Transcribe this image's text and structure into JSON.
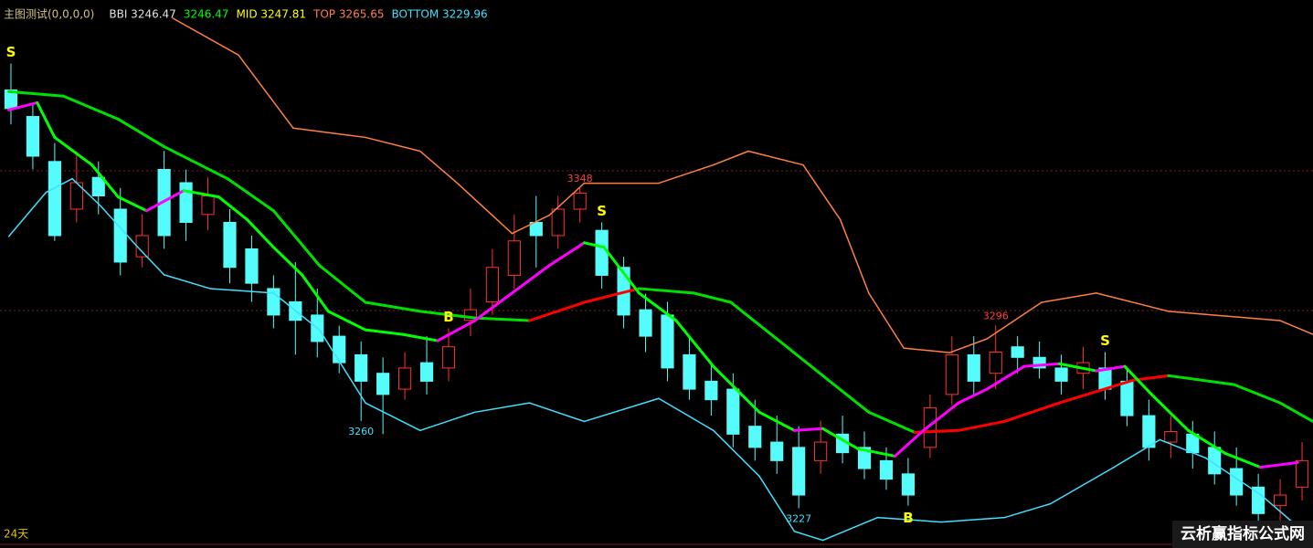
{
  "chart_data": {
    "type": "candlestick",
    "indicator": "主图测试(0,0,0,0)",
    "period_label": "24天",
    "watermark": "云析赢指标公式网",
    "legend": [
      {
        "label": "BBI 3246.47",
        "color": "#e0e0e0"
      },
      {
        "label": "3246.47",
        "color": "#00ff00"
      },
      {
        "label": "MID 3247.81",
        "color": "#ffff00"
      },
      {
        "label": "TOP 3265.65",
        "color": "#ff8040"
      },
      {
        "label": "BOTTOM 3229.96",
        "color": "#40e0ff"
      }
    ],
    "xlim": [
      0,
      60
    ],
    "ylim": [
      3212,
      3419
    ],
    "up_color": "#ff3232",
    "down_color": "#54fcfc",
    "open": [
      3385,
      3375,
      3358,
      3340,
      3352,
      3340,
      3322,
      3355,
      3350,
      3338,
      3335,
      3325,
      3310,
      3305,
      3300,
      3292,
      3285,
      3278,
      3272,
      3282,
      3280,
      3298,
      3305,
      3315,
      3335,
      3330,
      3340,
      3332,
      3318,
      3302,
      3300,
      3285,
      3275,
      3272,
      3258,
      3252,
      3250,
      3245,
      3255,
      3250,
      3245,
      3240,
      3250,
      3270,
      3285,
      3278,
      3288,
      3284,
      3280,
      3278,
      3280,
      3275,
      3262,
      3252,
      3255,
      3250,
      3242,
      3235,
      3228,
      3235
    ],
    "close": [
      3378,
      3360,
      3330,
      3350,
      3345,
      3320,
      3330,
      3330,
      3335,
      3345,
      3318,
      3312,
      3300,
      3298,
      3290,
      3282,
      3275,
      3270,
      3280,
      3275,
      3288,
      3302,
      3318,
      3328,
      3330,
      3340,
      3346,
      3315,
      3300,
      3292,
      3280,
      3272,
      3268,
      3255,
      3250,
      3245,
      3232,
      3252,
      3248,
      3242,
      3238,
      3232,
      3265,
      3285,
      3275,
      3286,
      3284,
      3280,
      3275,
      3282,
      3272,
      3262,
      3250,
      3256,
      3248,
      3240,
      3232,
      3225,
      3232,
      3245
    ],
    "high": [
      3395,
      3380,
      3365,
      3362,
      3358,
      3348,
      3338,
      3362,
      3355,
      3352,
      3340,
      3330,
      3315,
      3320,
      3310,
      3296,
      3290,
      3284,
      3286,
      3292,
      3295,
      3310,
      3325,
      3338,
      3345,
      3345,
      3348,
      3335,
      3322,
      3308,
      3305,
      3292,
      3282,
      3278,
      3268,
      3262,
      3258,
      3260,
      3262,
      3256,
      3250,
      3246,
      3270,
      3292,
      3292,
      3296,
      3292,
      3290,
      3285,
      3288,
      3286,
      3280,
      3268,
      3262,
      3260,
      3256,
      3250,
      3240,
      3238,
      3252
    ],
    "low": [
      3372,
      3355,
      3328,
      3335,
      3338,
      3315,
      3318,
      3325,
      3328,
      3332,
      3312,
      3305,
      3295,
      3285,
      3284,
      3278,
      3260,
      3255,
      3268,
      3270,
      3275,
      3292,
      3300,
      3310,
      3318,
      3325,
      3335,
      3310,
      3295,
      3286,
      3275,
      3268,
      3262,
      3250,
      3245,
      3240,
      3227,
      3240,
      3244,
      3238,
      3234,
      3228,
      3246,
      3266,
      3270,
      3272,
      3278,
      3276,
      3270,
      3272,
      3268,
      3258,
      3245,
      3246,
      3242,
      3236,
      3228,
      3220,
      3218,
      3230
    ],
    "annotations": [
      {
        "text": "3348",
        "candle": 26,
        "at": "high",
        "color": "#ff4040"
      },
      {
        "text": "3260",
        "candle": 16,
        "at": "low",
        "color": "#40e0ff"
      },
      {
        "text": "3227",
        "candle": 36,
        "at": "low",
        "color": "#40e0ff"
      },
      {
        "text": "3296",
        "candle": 45,
        "at": "high",
        "color": "#ff4040"
      },
      {
        "text": "S",
        "candle": 0,
        "at": "high",
        "color": "#ffff00"
      },
      {
        "text": "B",
        "candle": 20,
        "at": "high",
        "color": "#ffff00"
      },
      {
        "text": "S",
        "candle": 27,
        "at": "high",
        "color": "#ffff00"
      },
      {
        "text": "B",
        "candle": 41,
        "at": "low",
        "color": "#ffff00"
      },
      {
        "text": "S",
        "candle": 50,
        "at": "high",
        "color": "#ffff00"
      }
    ],
    "series": [
      {
        "name": "TOP",
        "color": "#ff8040",
        "rise_color": "#ff8040",
        "x": [
          7.9,
          10.9,
          13.4,
          16.7,
          19.2,
          20.9,
          23.4,
          25.1,
          26.7,
          30.1,
          32.6,
          34.2,
          36.7,
          38.4,
          39.7,
          41.3,
          43.4,
          45.1,
          47.6,
          50.1,
          53.4,
          58.5,
          60
        ],
        "values": [
          3412.1,
          3398.2,
          3370.6,
          3367.1,
          3361.9,
          3349.8,
          3330.8,
          3337.7,
          3349.8,
          3349.8,
          3356.7,
          3361.9,
          3356.7,
          3336.0,
          3308.3,
          3287.5,
          3285.8,
          3291.0,
          3304.8,
          3308.3,
          3301.4,
          3297.9,
          3292.7
        ]
      },
      {
        "name": "BOTTOM",
        "color": "#40e0ff",
        "rise_color": "#40e0ff",
        "x": [
          0.4,
          2.1,
          3.3,
          4.6,
          6.3,
          7.5,
          9.6,
          12.5,
          14.6,
          16.7,
          19.2,
          21.7,
          24.2,
          26.7,
          30.1,
          32.6,
          34.7,
          36.3,
          37.6,
          40.1,
          43.0,
          45.9,
          48.0,
          50.9,
          53.0,
          55.1,
          57.6,
          59.3
        ],
        "values": [
          3329.7,
          3346.3,
          3351.5,
          3341.2,
          3325.6,
          3315.2,
          3310.0,
          3308.3,
          3294.4,
          3266.8,
          3256.4,
          3263.3,
          3266.8,
          3259.8,
          3268.5,
          3256.4,
          3239.1,
          3218.3,
          3214.9,
          3223.5,
          3221.8,
          3223.5,
          3228.7,
          3242.5,
          3252.9,
          3246.0,
          3232.2,
          3220.1
        ]
      },
      {
        "name": "MID",
        "color": "#00e000",
        "rise_color": "#ff0000",
        "width": 3,
        "x": [
          0.4,
          2.9,
          5.4,
          7.5,
          10.4,
          12.5,
          14.6,
          16.7,
          19.2,
          21.7,
          24.2,
          26.7,
          29.2,
          31.7,
          33.4,
          35.5,
          37.6,
          39.7,
          41.8,
          43.8,
          45.9,
          48.4,
          51.8,
          53.4,
          56.4,
          58.5,
          60
        ],
        "values": [
          3384.4,
          3382.7,
          3374.0,
          3363.6,
          3351.5,
          3339.4,
          3318.7,
          3304.8,
          3301.4,
          3298.9,
          3297.9,
          3304.8,
          3310.0,
          3308.3,
          3304.8,
          3291.0,
          3277.1,
          3263.3,
          3255.7,
          3256.4,
          3259.8,
          3266.8,
          3275.4,
          3277.1,
          3273.7,
          3266.8,
          3259.8
        ]
      },
      {
        "name": "BBI",
        "color": "#00ff00",
        "rise_color": "#ff00ff",
        "width": 3,
        "x": [
          0.4,
          1.7,
          2.5,
          4.2,
          5.4,
          6.7,
          8.4,
          10.0,
          11.3,
          12.5,
          13.8,
          15.0,
          16.7,
          18.4,
          20.0,
          21.7,
          23.4,
          25.1,
          26.7,
          27.6,
          29.2,
          30.9,
          32.6,
          34.7,
          36.3,
          37.6,
          39.2,
          40.9,
          42.2,
          43.8,
          45.1,
          46.8,
          48.4,
          50.1,
          51.4,
          52.6,
          54.3,
          56.0,
          57.6,
          59.3
        ],
        "values": [
          3377.5,
          3380.2,
          3367.1,
          3356.7,
          3344.6,
          3339.4,
          3347.0,
          3344.6,
          3336.0,
          3325.6,
          3315.2,
          3301.4,
          3294.4,
          3292.7,
          3290.3,
          3297.9,
          3308.3,
          3318.7,
          3327.3,
          3325.6,
          3308.3,
          3297.9,
          3280.6,
          3263.3,
          3256.4,
          3257.1,
          3249.5,
          3246.7,
          3256.4,
          3266.8,
          3272.0,
          3280.6,
          3281.6,
          3278.9,
          3280.6,
          3270.2,
          3256.4,
          3247.7,
          3242.5,
          3244.3
        ]
      }
    ]
  }
}
